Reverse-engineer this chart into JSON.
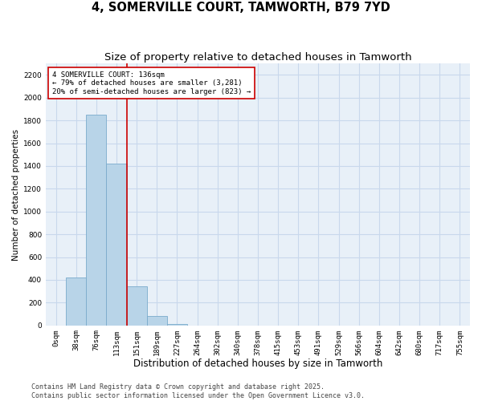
{
  "title": "4, SOMERVILLE COURT, TAMWORTH, B79 7YD",
  "subtitle": "Size of property relative to detached houses in Tamworth",
  "xlabel": "Distribution of detached houses by size in Tamworth",
  "ylabel": "Number of detached properties",
  "categories": [
    "0sqm",
    "38sqm",
    "76sqm",
    "113sqm",
    "151sqm",
    "189sqm",
    "227sqm",
    "264sqm",
    "302sqm",
    "340sqm",
    "378sqm",
    "415sqm",
    "453sqm",
    "491sqm",
    "529sqm",
    "566sqm",
    "604sqm",
    "642sqm",
    "680sqm",
    "717sqm",
    "755sqm"
  ],
  "values": [
    0,
    420,
    1850,
    1420,
    340,
    80,
    15,
    0,
    0,
    0,
    0,
    0,
    0,
    0,
    0,
    0,
    0,
    0,
    0,
    0,
    0
  ],
  "bar_color": "#b8d4e8",
  "bar_edge_color": "#7aabcc",
  "grid_color": "#c8d8ec",
  "bg_color": "#e8f0f8",
  "vline_x": 3.5,
  "vline_color": "#cc0000",
  "annotation_text": "4 SOMERVILLE COURT: 136sqm\n← 79% of detached houses are smaller (3,281)\n20% of semi-detached houses are larger (823) →",
  "annotation_box_color": "#cc0000",
  "ylim": [
    0,
    2300
  ],
  "yticks": [
    0,
    200,
    400,
    600,
    800,
    1000,
    1200,
    1400,
    1600,
    1800,
    2000,
    2200
  ],
  "footer": "Contains HM Land Registry data © Crown copyright and database right 2025.\nContains public sector information licensed under the Open Government Licence v3.0.",
  "title_fontsize": 10.5,
  "subtitle_fontsize": 9.5,
  "xlabel_fontsize": 8.5,
  "ylabel_fontsize": 7.5,
  "tick_fontsize": 6.5,
  "annotation_fontsize": 6.5,
  "footer_fontsize": 6.0
}
